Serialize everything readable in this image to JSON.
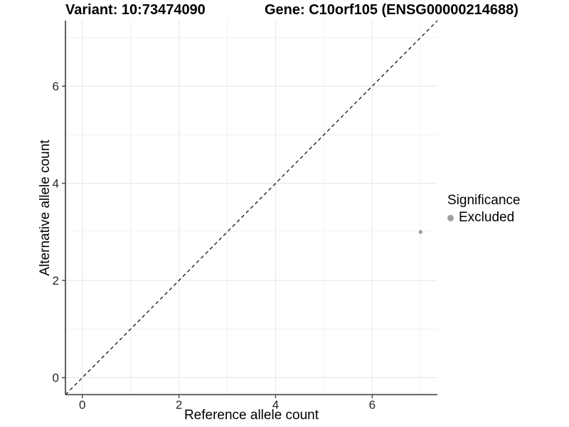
{
  "titles": {
    "variant": "Variant: 10:73474090",
    "gene": "Gene: C10orf105 (ENSG00000214688)"
  },
  "chart_data": {
    "type": "scatter",
    "title": "Variant: 10:73474090 | Gene: C10orf105 (ENSG00000214688)",
    "xlabel": "Reference allele count",
    "ylabel": "Alternative allele count",
    "xlim": [
      -0.35,
      7.35
    ],
    "ylim": [
      -0.35,
      7.35
    ],
    "x_ticks": [
      0,
      2,
      4,
      6
    ],
    "y_ticks": [
      0,
      2,
      4,
      6
    ],
    "x_minor_ticks": [
      1,
      3,
      5,
      7
    ],
    "y_minor_ticks": [
      1,
      3,
      5,
      7
    ],
    "grid": true,
    "legend": {
      "title": "Significance",
      "position": "right"
    },
    "identity_line": {
      "style": "dashed",
      "color": "#000000",
      "from": [
        -0.35,
        -0.35
      ],
      "to": [
        7.35,
        7.35
      ]
    },
    "series": [
      {
        "name": "Excluded",
        "color": "#9e9e9e",
        "points": [
          {
            "x": 7,
            "y": 3
          }
        ]
      }
    ]
  },
  "colors": {
    "background": "#ffffff",
    "grid_major": "#e5e5e5",
    "grid_minor": "#f0f0f0",
    "axis_line": "#4d4d4d",
    "tick_text": "#262626",
    "point": "#9e9e9e"
  }
}
